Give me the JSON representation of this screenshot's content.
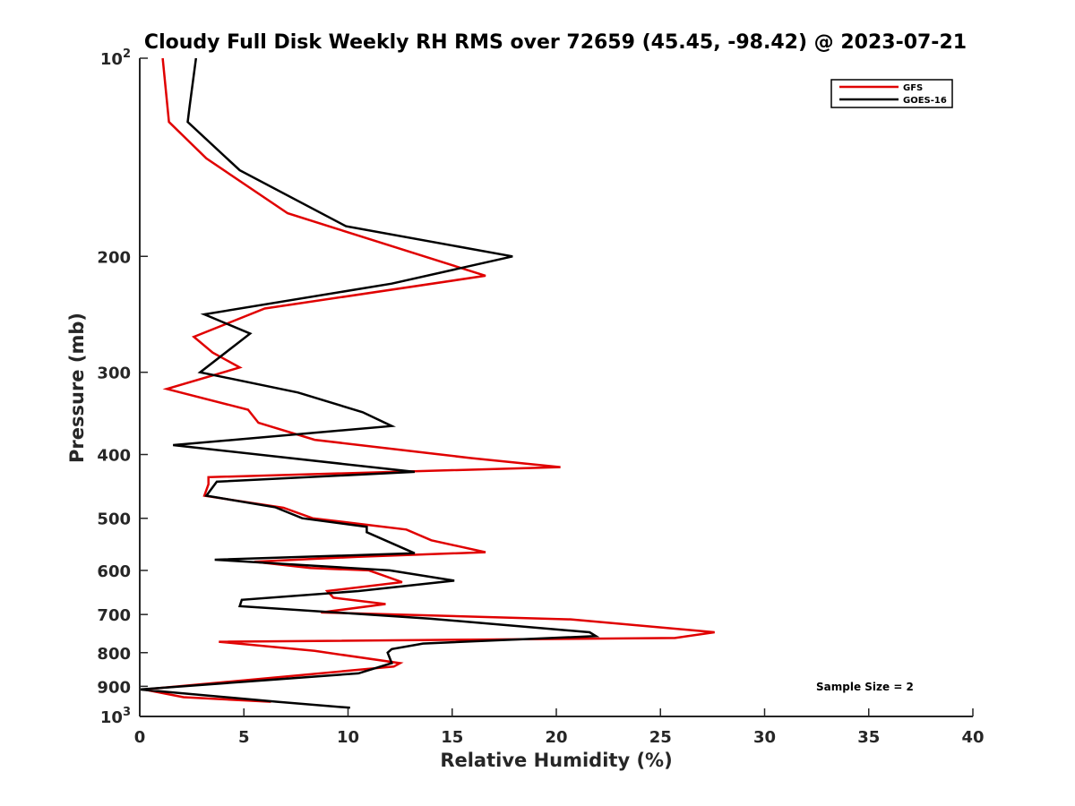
{
  "chart_data": {
    "type": "line",
    "title": "Cloudy Full Disk Weekly RH RMS over 72659 (45.45, -98.42) @ 2023-07-21",
    "xlabel": "Relative Humidity (%)",
    "ylabel": "Pressure (mb)",
    "xlim": [
      0,
      40
    ],
    "ylim": [
      100,
      1000
    ],
    "yscale": "log",
    "y_reversed": true,
    "grid": false,
    "legend_position": "top-right",
    "x_ticks": [
      "0",
      "5",
      "10",
      "15",
      "20",
      "25",
      "30",
      "35",
      "40"
    ],
    "y_ticks": [
      {
        "value": 100,
        "base": "10",
        "exp": "2"
      },
      {
        "value": 200,
        "label": "200"
      },
      {
        "value": 300,
        "label": "300"
      },
      {
        "value": 400,
        "label": "400"
      },
      {
        "value": 500,
        "label": "500"
      },
      {
        "value": 600,
        "label": "600"
      },
      {
        "value": 700,
        "label": "700"
      },
      {
        "value": 800,
        "label": "800"
      },
      {
        "value": 900,
        "label": "900"
      },
      {
        "value": 1000,
        "base": "10",
        "exp": "3"
      }
    ],
    "annotation": "Sample Size = 2",
    "series": [
      {
        "name": "GFS",
        "color": "#e00000",
        "points": [
          [
            1.1,
            100
          ],
          [
            1.4,
            125
          ],
          [
            3.2,
            142
          ],
          [
            7.1,
            172
          ],
          [
            16.6,
            214
          ],
          [
            6.0,
            240
          ],
          [
            2.6,
            265
          ],
          [
            3.5,
            280
          ],
          [
            4.8,
            295
          ],
          [
            1.3,
            318
          ],
          [
            5.2,
            342
          ],
          [
            5.7,
            358
          ],
          [
            8.4,
            380
          ],
          [
            15.9,
            405
          ],
          [
            20.2,
            418
          ],
          [
            3.3,
            433
          ],
          [
            3.3,
            444
          ],
          [
            3.1,
            462
          ],
          [
            6.9,
            482
          ],
          [
            8.3,
            500
          ],
          [
            12.8,
            520
          ],
          [
            14.0,
            540
          ],
          [
            16.6,
            563
          ],
          [
            10.5,
            572
          ],
          [
            5.5,
            582
          ],
          [
            8.2,
            595
          ],
          [
            11.0,
            600
          ],
          [
            12.6,
            625
          ],
          [
            9.0,
            645
          ],
          [
            9.3,
            660
          ],
          [
            11.8,
            675
          ],
          [
            8.7,
            695
          ],
          [
            20.7,
            712
          ],
          [
            27.6,
            745
          ],
          [
            25.7,
            760
          ],
          [
            3.8,
            770
          ],
          [
            8.4,
            795
          ],
          [
            12.5,
            830
          ],
          [
            12.2,
            840
          ],
          [
            0.2,
            910
          ],
          [
            2.1,
            935
          ],
          [
            6.3,
            950
          ]
        ]
      },
      {
        "name": "GOES-16",
        "color": "#000000",
        "points": [
          [
            2.7,
            100
          ],
          [
            2.4,
            118
          ],
          [
            2.3,
            125
          ],
          [
            4.8,
            148
          ],
          [
            9.9,
            180
          ],
          [
            17.9,
            200
          ],
          [
            12.1,
            220
          ],
          [
            3.1,
            245
          ],
          [
            5.3,
            262
          ],
          [
            2.9,
            300
          ],
          [
            7.6,
            322
          ],
          [
            10.7,
            345
          ],
          [
            12.1,
            362
          ],
          [
            1.6,
            387
          ],
          [
            13.2,
            425
          ],
          [
            3.7,
            440
          ],
          [
            3.2,
            462
          ],
          [
            6.5,
            481
          ],
          [
            7.8,
            500
          ],
          [
            10.9,
            515
          ],
          [
            10.9,
            525
          ],
          [
            13.2,
            565
          ],
          [
            3.6,
            578
          ],
          [
            12.0,
            600
          ],
          [
            15.1,
            622
          ],
          [
            10.5,
            645
          ],
          [
            4.9,
            665
          ],
          [
            4.8,
            680
          ],
          [
            13.9,
            710
          ],
          [
            21.6,
            745
          ],
          [
            21.9,
            755
          ],
          [
            13.6,
            775
          ],
          [
            12.1,
            790
          ],
          [
            11.9,
            800
          ],
          [
            12.1,
            830
          ],
          [
            10.5,
            860
          ],
          [
            0.0,
            910
          ],
          [
            6.6,
            950
          ],
          [
            10.1,
            970
          ]
        ]
      }
    ]
  }
}
